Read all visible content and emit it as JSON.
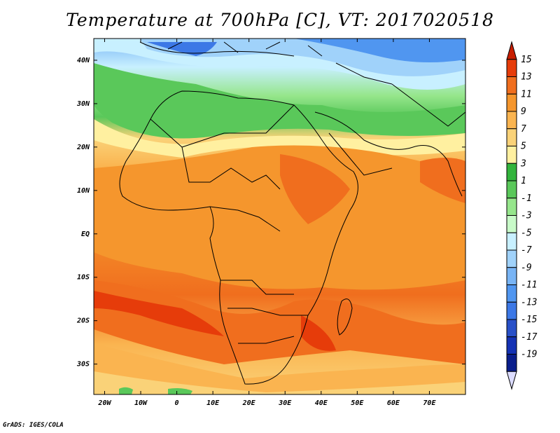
{
  "title": "Temperature at 700hPa [C], VT: 2017020518",
  "credit": "GrADS: IGES/COLA",
  "map": {
    "projection": "lat-lon",
    "lon_range": [
      -23,
      80
    ],
    "lat_range": [
      -37,
      45
    ],
    "lat_ticks": [
      {
        "value": 40,
        "label": "40N"
      },
      {
        "value": 30,
        "label": "30N"
      },
      {
        "value": 20,
        "label": "20N"
      },
      {
        "value": 10,
        "label": "10N"
      },
      {
        "value": 0,
        "label": "EQ"
      },
      {
        "value": -10,
        "label": "10S"
      },
      {
        "value": -20,
        "label": "20S"
      },
      {
        "value": -30,
        "label": "30S"
      }
    ],
    "lon_ticks": [
      {
        "value": -20,
        "label": "20W"
      },
      {
        "value": -10,
        "label": "10W"
      },
      {
        "value": 0,
        "label": "0"
      },
      {
        "value": 10,
        "label": "10E"
      },
      {
        "value": 20,
        "label": "20E"
      },
      {
        "value": 30,
        "label": "30E"
      },
      {
        "value": 40,
        "label": "40E"
      },
      {
        "value": 50,
        "label": "50E"
      },
      {
        "value": 60,
        "label": "60E"
      },
      {
        "value": 70,
        "label": "70E"
      }
    ]
  },
  "colorbar": {
    "levels": [
      "15",
      "13",
      "11",
      "9",
      "7",
      "5",
      "3",
      "1",
      "-1",
      "-3",
      "-5",
      "-7",
      "-9",
      "-11",
      "-13",
      "-15",
      "-17",
      "-19"
    ],
    "colors": [
      "#c81e00",
      "#e63c0a",
      "#f06e1e",
      "#f5962d",
      "#fab450",
      "#fad278",
      "#fff0a0",
      "#32b43c",
      "#5ac85a",
      "#96e68c",
      "#c8fac8",
      "#c8f0ff",
      "#a0d2fa",
      "#78b4f5",
      "#5096f0",
      "#3c78e6",
      "#2850c8",
      "#1432b4",
      "#0a1e8c",
      "#dcdcff"
    ]
  }
}
